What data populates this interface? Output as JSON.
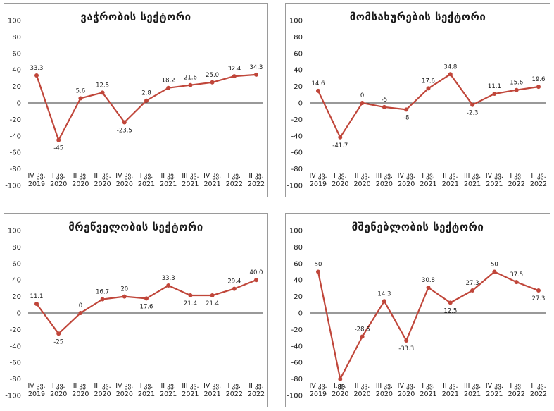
{
  "chart_data": [
    {
      "type": "line",
      "title": "ვაჭრობის სექტორი",
      "categories": [
        [
          "IV კვ.",
          "2019"
        ],
        [
          "I კვ.",
          "2020"
        ],
        [
          "II კვ.",
          "2020"
        ],
        [
          "III კვ.",
          "2020"
        ],
        [
          "IV კვ.",
          "2020"
        ],
        [
          "I კვ.",
          "2021"
        ],
        [
          "II კვ.",
          "2021"
        ],
        [
          "III კვ.",
          "2021"
        ],
        [
          "IV კვ.",
          "2021"
        ],
        [
          "I კვ.",
          "2022"
        ],
        [
          "II კვ.",
          "2022"
        ]
      ],
      "values": [
        33.3,
        -45,
        5.6,
        12.5,
        -23.5,
        2.8,
        18.2,
        21.6,
        25.0,
        32.4,
        34.3
      ],
      "labels": [
        "33.3",
        "-45",
        "5.6",
        "12.5",
        "-23.5",
        "2.8",
        "18.2",
        "21.6",
        "25.0",
        "32.4",
        "34.3"
      ],
      "yticks": [
        "100",
        "80",
        "60",
        "40",
        "20",
        "0",
        "-20",
        "-40",
        "-60",
        "-80",
        "-100"
      ],
      "ylim": [
        -100,
        100
      ],
      "color": "#c0463a"
    },
    {
      "type": "line",
      "title": "მომსახურების სექტორი",
      "categories": [
        [
          "IV კვ.",
          "2019"
        ],
        [
          "I კვ.",
          "2020"
        ],
        [
          "II კვ.",
          "2020"
        ],
        [
          "III კვ.",
          "2020"
        ],
        [
          "IV კვ.",
          "2020"
        ],
        [
          "I კვ.",
          "2021"
        ],
        [
          "II კვ.",
          "2021"
        ],
        [
          "III კვ.",
          "2021"
        ],
        [
          "IV კვ.",
          "2021"
        ],
        [
          "I კვ.",
          "2022"
        ],
        [
          "II კვ.",
          "2022"
        ]
      ],
      "values": [
        14.6,
        -41.7,
        0,
        -5,
        -8,
        17.6,
        34.8,
        -2.3,
        11.1,
        15.6,
        19.6
      ],
      "labels": [
        "14.6",
        "-41.7",
        "0",
        "-5",
        "-8",
        "17.6",
        "34.8",
        "-2.3",
        "11.1",
        "15.6",
        "19.6"
      ],
      "yticks": [
        "100",
        "80",
        "60",
        "40",
        "20",
        "0",
        "-20",
        "-40",
        "-60",
        "-80",
        "-100"
      ],
      "ylim": [
        -100,
        100
      ],
      "color": "#c0463a"
    },
    {
      "type": "line",
      "title": "მრეწველობის სექტორი",
      "categories": [
        [
          "IV კვ.",
          "2019"
        ],
        [
          "I კვ.",
          "2020"
        ],
        [
          "II კვ.",
          "2020"
        ],
        [
          "III კვ.",
          "2020"
        ],
        [
          "IV კვ.",
          "2020"
        ],
        [
          "I კვ.",
          "2021"
        ],
        [
          "II კვ.",
          "2021"
        ],
        [
          "III კვ.",
          "2021"
        ],
        [
          "IV კვ.",
          "2021"
        ],
        [
          "I კვ.",
          "2022"
        ],
        [
          "II კვ.",
          "2022"
        ]
      ],
      "values": [
        11.1,
        -25,
        0,
        16.7,
        20,
        17.6,
        33.3,
        21.4,
        21.4,
        29.4,
        40.0
      ],
      "labels": [
        "11.1",
        "-25",
        "0",
        "16.7",
        "20",
        "17.6",
        "33.3",
        "21.4",
        "21.4",
        "29.4",
        "40.0"
      ],
      "yticks": [
        "100",
        "80",
        "60",
        "40",
        "20",
        "0",
        "-20",
        "-40",
        "-60",
        "-80",
        "-100"
      ],
      "ylim": [
        -100,
        100
      ],
      "color": "#c0463a"
    },
    {
      "type": "line",
      "title": "მშენებლობის სექტორი",
      "categories": [
        [
          "IV კვ.",
          "2019"
        ],
        [
          "I კვ.",
          "2020"
        ],
        [
          "II კვ.",
          "2020"
        ],
        [
          "III კვ.",
          "2020"
        ],
        [
          "IV კვ.",
          "2020"
        ],
        [
          "I კვ.",
          "2021"
        ],
        [
          "II კვ.",
          "2021"
        ],
        [
          "III კვ.",
          "2021"
        ],
        [
          "IV კვ.",
          "2021"
        ],
        [
          "I კვ.",
          "2022"
        ],
        [
          "II კვ.",
          "2022"
        ]
      ],
      "values": [
        50,
        -80,
        -28.6,
        14.3,
        -33.3,
        30.8,
        12.5,
        27.3,
        50,
        37.5,
        27.3
      ],
      "labels": [
        "50",
        "-80",
        "-28.6",
        "14.3",
        "-33.3",
        "30.8",
        "12.5",
        "27.3",
        "50",
        "37.5",
        "27.3"
      ],
      "yticks": [
        "100",
        "80",
        "60",
        "40",
        "20",
        "0",
        "-20",
        "-40",
        "-60",
        "-80",
        "-100"
      ],
      "ylim": [
        -100,
        100
      ],
      "color": "#c0463a"
    }
  ]
}
